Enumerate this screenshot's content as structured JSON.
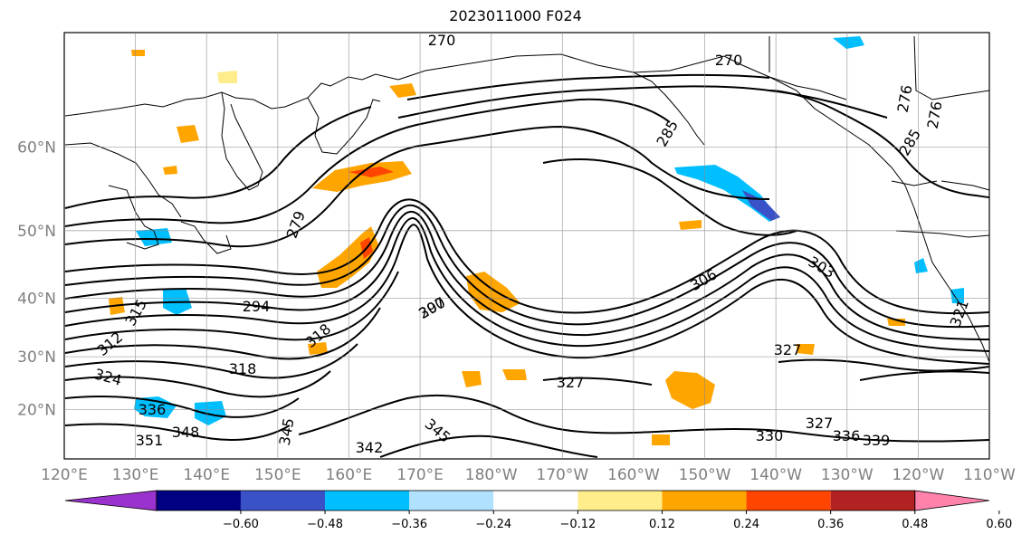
{
  "title": "2023011000 F024",
  "map": {
    "lon_ticks": [
      "120°E",
      "130°E",
      "140°E",
      "150°E",
      "160°E",
      "170°E",
      "180°W",
      "170°W",
      "160°W",
      "150°W",
      "140°W",
      "130°W",
      "120°W",
      "110°W"
    ],
    "lat_ticks": [
      "20°N",
      "30°N",
      "40°N",
      "50°N",
      "60°N"
    ],
    "lat_values": [
      20,
      30,
      40,
      50,
      60
    ],
    "lat_range": [
      10,
      70
    ],
    "lon_range": [
      120,
      250
    ],
    "gridlines": true,
    "contour_labels": [
      "270",
      "270",
      "276",
      "276",
      "285",
      "285",
      "279",
      "294",
      "297",
      "300",
      "303",
      "306",
      "312",
      "315",
      "318",
      "318",
      "321",
      "324",
      "327",
      "327",
      "327",
      "330",
      "336",
      "336",
      "339",
      "342",
      "345",
      "345",
      "348",
      "351"
    ]
  },
  "colorbar": {
    "ticks": [
      "−0.60",
      "−0.48",
      "−0.36",
      "−0.24",
      "−0.12",
      "0.12",
      "0.24",
      "0.36",
      "0.48",
      "0.60"
    ],
    "colors": [
      "#9a32cd",
      "#000080",
      "#3a52c8",
      "#00bfff",
      "#b0e2ff",
      "#ffffff",
      "#ffec8b",
      "#ffa500",
      "#ff4500",
      "#b22222",
      "#ff82ab"
    ],
    "extend": "both"
  },
  "icons": {
    "coastline": "coastline-lines",
    "contours": "black-contour-lines"
  }
}
